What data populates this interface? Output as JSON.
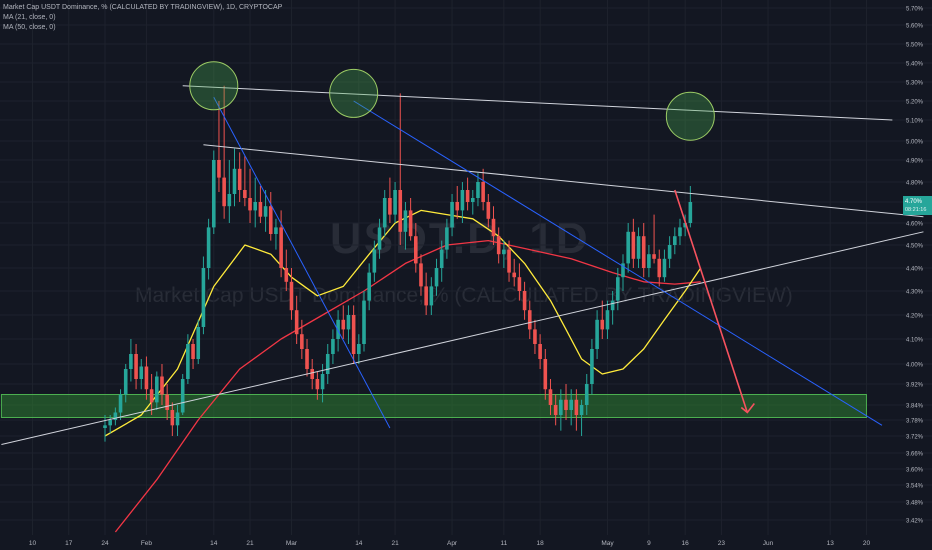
{
  "legend": {
    "symbol_line": "Market Cap USDT Dominance, % (CALCULATED BY TRADINGVIEW), 1D, CRYPTOCAP",
    "ma21_line": "MA (21, close, 0)",
    "ma50_line": "MA (50, close, 0)"
  },
  "watermark": {
    "symbol": "USDT.D, 1D",
    "subtitle": "Market Cap USDT Dominance, % (CALCULATED BY TRADINGVIEW)"
  },
  "price_tag": {
    "value": "4.70%",
    "countdown": "08:21:16"
  },
  "colors": {
    "background": "#131722",
    "up_candle": "#26a69a",
    "down_candle": "#ef5350",
    "ma21": "#ffeb3b",
    "ma50": "#f23645",
    "trendline_blue": "#2962ff",
    "trendline_white": "#d1d4dc",
    "support_zone": "#1b5e20",
    "arrow": "#f7525f"
  },
  "chart_data": {
    "type": "candlestick",
    "y_axis": {
      "unit": "%",
      "ylim": [
        3.38,
        5.72
      ],
      "tick_labels": [
        "5.70%",
        "5.60%",
        "5.50%",
        "5.40%",
        "5.30%",
        "5.20%",
        "5.10%",
        "5.00%",
        "4.90%",
        "4.80%",
        "4.70%",
        "4.60%",
        "4.50%",
        "4.40%",
        "4.30%",
        "4.20%",
        "4.10%",
        "4.00%",
        "3.92%",
        "3.84%",
        "3.78%",
        "3.72%",
        "3.66%",
        "3.60%",
        "3.54%",
        "3.48%",
        "3.42%"
      ],
      "tick_values": [
        5.7,
        5.6,
        5.5,
        5.4,
        5.3,
        5.2,
        5.1,
        5.0,
        4.9,
        4.8,
        4.7,
        4.6,
        4.5,
        4.4,
        4.3,
        4.2,
        4.1,
        4.0,
        3.92,
        3.84,
        3.78,
        3.72,
        3.66,
        3.6,
        3.54,
        3.48,
        3.42
      ]
    },
    "x_axis": {
      "tick_labels": [
        "10",
        "17",
        "24",
        "Feb",
        "14",
        "21",
        "Mar",
        "14",
        "21",
        "Apr",
        "11",
        "18",
        "May",
        "9",
        "16",
        "23",
        "Jun",
        "13",
        "20"
      ],
      "tick_days": [
        -14,
        -7,
        0,
        8,
        21,
        28,
        36,
        49,
        56,
        67,
        77,
        84,
        97,
        105,
        112,
        119,
        128,
        140,
        147
      ]
    },
    "candles": [
      {
        "o": 3.75,
        "h": 3.8,
        "l": 3.7,
        "c": 3.76
      },
      {
        "o": 3.76,
        "h": 3.8,
        "l": 3.73,
        "c": 3.78
      },
      {
        "o": 3.78,
        "h": 3.83,
        "l": 3.76,
        "c": 3.81
      },
      {
        "o": 3.81,
        "h": 3.9,
        "l": 3.78,
        "c": 3.88
      },
      {
        "o": 3.88,
        "h": 4.0,
        "l": 3.85,
        "c": 3.98
      },
      {
        "o": 3.98,
        "h": 4.1,
        "l": 3.93,
        "c": 4.04
      },
      {
        "o": 4.04,
        "h": 4.08,
        "l": 3.9,
        "c": 3.94
      },
      {
        "o": 3.94,
        "h": 4.02,
        "l": 3.9,
        "c": 3.99
      },
      {
        "o": 3.99,
        "h": 4.03,
        "l": 3.86,
        "c": 3.9
      },
      {
        "o": 3.9,
        "h": 3.96,
        "l": 3.8,
        "c": 3.85
      },
      {
        "o": 3.85,
        "h": 3.97,
        "l": 3.82,
        "c": 3.95
      },
      {
        "o": 3.95,
        "h": 4.0,
        "l": 3.84,
        "c": 3.88
      },
      {
        "o": 3.88,
        "h": 3.92,
        "l": 3.78,
        "c": 3.82
      },
      {
        "o": 3.82,
        "h": 3.85,
        "l": 3.72,
        "c": 3.76
      },
      {
        "o": 3.76,
        "h": 3.84,
        "l": 3.72,
        "c": 3.81
      },
      {
        "o": 3.81,
        "h": 3.96,
        "l": 3.8,
        "c": 3.94
      },
      {
        "o": 3.94,
        "h": 4.12,
        "l": 3.92,
        "c": 4.08
      },
      {
        "o": 4.08,
        "h": 4.1,
        "l": 3.98,
        "c": 4.02
      },
      {
        "o": 4.02,
        "h": 4.18,
        "l": 4.0,
        "c": 4.15
      },
      {
        "o": 4.15,
        "h": 4.45,
        "l": 4.12,
        "c": 4.4
      },
      {
        "o": 4.4,
        "h": 4.62,
        "l": 4.35,
        "c": 4.58
      },
      {
        "o": 4.58,
        "h": 4.95,
        "l": 4.55,
        "c": 4.9
      },
      {
        "o": 4.9,
        "h": 5.2,
        "l": 4.75,
        "c": 4.82
      },
      {
        "o": 4.82,
        "h": 5.28,
        "l": 4.62,
        "c": 4.68
      },
      {
        "o": 4.68,
        "h": 4.9,
        "l": 4.6,
        "c": 4.74
      },
      {
        "o": 4.74,
        "h": 4.96,
        "l": 4.68,
        "c": 4.86
      },
      {
        "o": 4.86,
        "h": 4.94,
        "l": 4.7,
        "c": 4.76
      },
      {
        "o": 4.76,
        "h": 4.92,
        "l": 4.68,
        "c": 4.72
      },
      {
        "o": 4.72,
        "h": 4.86,
        "l": 4.6,
        "c": 4.66
      },
      {
        "o": 4.66,
        "h": 4.82,
        "l": 4.58,
        "c": 4.7
      },
      {
        "o": 4.7,
        "h": 4.78,
        "l": 4.6,
        "c": 4.63
      },
      {
        "o": 4.63,
        "h": 4.76,
        "l": 4.56,
        "c": 4.68
      },
      {
        "o": 4.68,
        "h": 4.75,
        "l": 4.52,
        "c": 4.55
      },
      {
        "o": 4.55,
        "h": 4.62,
        "l": 4.48,
        "c": 4.58
      },
      {
        "o": 4.58,
        "h": 4.66,
        "l": 4.36,
        "c": 4.4
      },
      {
        "o": 4.4,
        "h": 4.48,
        "l": 4.3,
        "c": 4.34
      },
      {
        "o": 4.34,
        "h": 4.4,
        "l": 4.18,
        "c": 4.22
      },
      {
        "o": 4.22,
        "h": 4.28,
        "l": 4.08,
        "c": 4.12
      },
      {
        "o": 4.12,
        "h": 4.18,
        "l": 4.02,
        "c": 4.06
      },
      {
        "o": 4.06,
        "h": 4.1,
        "l": 3.95,
        "c": 3.98
      },
      {
        "o": 3.98,
        "h": 4.02,
        "l": 3.9,
        "c": 3.94
      },
      {
        "o": 3.94,
        "h": 3.97,
        "l": 3.86,
        "c": 3.9
      },
      {
        "o": 3.9,
        "h": 4.0,
        "l": 3.85,
        "c": 3.96
      },
      {
        "o": 3.96,
        "h": 4.08,
        "l": 3.92,
        "c": 4.04
      },
      {
        "o": 4.04,
        "h": 4.14,
        "l": 4.0,
        "c": 4.1
      },
      {
        "o": 4.1,
        "h": 4.22,
        "l": 4.05,
        "c": 4.18
      },
      {
        "o": 4.18,
        "h": 4.24,
        "l": 4.1,
        "c": 4.14
      },
      {
        "o": 4.14,
        "h": 4.24,
        "l": 4.08,
        "c": 4.2
      },
      {
        "o": 4.2,
        "h": 4.24,
        "l": 4.0,
        "c": 4.04
      },
      {
        "o": 4.04,
        "h": 4.12,
        "l": 4.0,
        "c": 4.08
      },
      {
        "o": 4.08,
        "h": 4.3,
        "l": 4.05,
        "c": 4.26
      },
      {
        "o": 4.26,
        "h": 4.42,
        "l": 4.22,
        "c": 4.38
      },
      {
        "o": 4.38,
        "h": 4.52,
        "l": 4.34,
        "c": 4.48
      },
      {
        "o": 4.48,
        "h": 4.62,
        "l": 4.44,
        "c": 4.58
      },
      {
        "o": 4.58,
        "h": 4.76,
        "l": 4.54,
        "c": 4.72
      },
      {
        "o": 4.72,
        "h": 4.82,
        "l": 4.6,
        "c": 4.64
      },
      {
        "o": 4.64,
        "h": 4.8,
        "l": 4.6,
        "c": 4.76
      },
      {
        "o": 4.76,
        "h": 5.24,
        "l": 4.5,
        "c": 4.56
      },
      {
        "o": 4.56,
        "h": 4.7,
        "l": 4.48,
        "c": 4.66
      },
      {
        "o": 4.66,
        "h": 4.72,
        "l": 4.52,
        "c": 4.54
      },
      {
        "o": 4.54,
        "h": 4.6,
        "l": 4.38,
        "c": 4.42
      },
      {
        "o": 4.42,
        "h": 4.46,
        "l": 4.28,
        "c": 4.32
      },
      {
        "o": 4.32,
        "h": 4.38,
        "l": 4.2,
        "c": 4.24
      },
      {
        "o": 4.24,
        "h": 4.36,
        "l": 4.2,
        "c": 4.32
      },
      {
        "o": 4.32,
        "h": 4.44,
        "l": 4.28,
        "c": 4.4
      },
      {
        "o": 4.4,
        "h": 4.52,
        "l": 4.34,
        "c": 4.48
      },
      {
        "o": 4.48,
        "h": 4.62,
        "l": 4.44,
        "c": 4.58
      },
      {
        "o": 4.58,
        "h": 4.74,
        "l": 4.54,
        "c": 4.7
      },
      {
        "o": 4.7,
        "h": 4.78,
        "l": 4.62,
        "c": 4.66
      },
      {
        "o": 4.66,
        "h": 4.8,
        "l": 4.6,
        "c": 4.76
      },
      {
        "o": 4.76,
        "h": 4.82,
        "l": 4.66,
        "c": 4.7
      },
      {
        "o": 4.7,
        "h": 4.76,
        "l": 4.64,
        "c": 4.72
      },
      {
        "o": 4.72,
        "h": 4.84,
        "l": 4.68,
        "c": 4.8
      },
      {
        "o": 4.8,
        "h": 4.86,
        "l": 4.66,
        "c": 4.7
      },
      {
        "o": 4.7,
        "h": 4.74,
        "l": 4.58,
        "c": 4.62
      },
      {
        "o": 4.62,
        "h": 4.68,
        "l": 4.5,
        "c": 4.54
      },
      {
        "o": 4.54,
        "h": 4.58,
        "l": 4.42,
        "c": 4.46
      },
      {
        "o": 4.46,
        "h": 4.52,
        "l": 4.4,
        "c": 4.48
      },
      {
        "o": 4.48,
        "h": 4.52,
        "l": 4.34,
        "c": 4.38
      },
      {
        "o": 4.38,
        "h": 4.44,
        "l": 4.32,
        "c": 4.36
      },
      {
        "o": 4.36,
        "h": 4.42,
        "l": 4.26,
        "c": 4.3
      },
      {
        "o": 4.3,
        "h": 4.34,
        "l": 4.18,
        "c": 4.22
      },
      {
        "o": 4.22,
        "h": 4.26,
        "l": 4.1,
        "c": 4.14
      },
      {
        "o": 4.14,
        "h": 4.18,
        "l": 4.04,
        "c": 4.08
      },
      {
        "o": 4.08,
        "h": 4.12,
        "l": 3.98,
        "c": 4.02
      },
      {
        "o": 4.02,
        "h": 4.06,
        "l": 3.86,
        "c": 3.9
      },
      {
        "o": 3.9,
        "h": 3.94,
        "l": 3.8,
        "c": 3.84
      },
      {
        "o": 3.84,
        "h": 3.88,
        "l": 3.76,
        "c": 3.8
      },
      {
        "o": 3.8,
        "h": 3.9,
        "l": 3.74,
        "c": 3.86
      },
      {
        "o": 3.86,
        "h": 3.92,
        "l": 3.78,
        "c": 3.82
      },
      {
        "o": 3.82,
        "h": 3.9,
        "l": 3.76,
        "c": 3.86
      },
      {
        "o": 3.86,
        "h": 3.9,
        "l": 3.74,
        "c": 3.8
      },
      {
        "o": 3.8,
        "h": 3.86,
        "l": 3.72,
        "c": 3.84
      },
      {
        "o": 3.84,
        "h": 3.96,
        "l": 3.8,
        "c": 3.92
      },
      {
        "o": 3.92,
        "h": 4.1,
        "l": 3.88,
        "c": 4.06
      },
      {
        "o": 4.06,
        "h": 4.22,
        "l": 4.02,
        "c": 4.18
      },
      {
        "o": 4.18,
        "h": 4.26,
        "l": 4.1,
        "c": 4.14
      },
      {
        "o": 4.14,
        "h": 4.26,
        "l": 4.1,
        "c": 4.22
      },
      {
        "o": 4.22,
        "h": 4.3,
        "l": 4.16,
        "c": 4.26
      },
      {
        "o": 4.26,
        "h": 4.4,
        "l": 4.22,
        "c": 4.36
      },
      {
        "o": 4.36,
        "h": 4.46,
        "l": 4.3,
        "c": 4.42
      },
      {
        "o": 4.42,
        "h": 4.6,
        "l": 4.38,
        "c": 4.56
      },
      {
        "o": 4.56,
        "h": 4.62,
        "l": 4.4,
        "c": 4.44
      },
      {
        "o": 4.44,
        "h": 4.58,
        "l": 4.4,
        "c": 4.54
      },
      {
        "o": 4.54,
        "h": 4.6,
        "l": 4.36,
        "c": 4.4
      },
      {
        "o": 4.4,
        "h": 4.5,
        "l": 4.36,
        "c": 4.46
      },
      {
        "o": 4.46,
        "h": 4.64,
        "l": 4.42,
        "c": 4.44
      },
      {
        "o": 4.44,
        "h": 4.48,
        "l": 4.32,
        "c": 4.36
      },
      {
        "o": 4.36,
        "h": 4.48,
        "l": 4.34,
        "c": 4.44
      },
      {
        "o": 4.44,
        "h": 4.54,
        "l": 4.4,
        "c": 4.5
      },
      {
        "o": 4.5,
        "h": 4.58,
        "l": 4.46,
        "c": 4.54
      },
      {
        "o": 4.54,
        "h": 4.62,
        "l": 4.5,
        "c": 4.58
      },
      {
        "o": 4.58,
        "h": 4.64,
        "l": 4.54,
        "c": 4.6
      },
      {
        "o": 4.6,
        "h": 4.78,
        "l": 4.58,
        "c": 4.7
      }
    ],
    "ma21": [
      [
        0,
        3.72
      ],
      [
        7,
        3.8
      ],
      [
        14,
        3.98
      ],
      [
        21,
        4.32
      ],
      [
        27,
        4.5
      ],
      [
        32,
        4.46
      ],
      [
        36,
        4.36
      ],
      [
        41,
        4.28
      ],
      [
        46,
        4.32
      ],
      [
        51,
        4.46
      ],
      [
        56,
        4.6
      ],
      [
        61,
        4.66
      ],
      [
        66,
        4.64
      ],
      [
        71,
        4.62
      ],
      [
        76,
        4.54
      ],
      [
        81,
        4.42
      ],
      [
        86,
        4.26
      ],
      [
        89,
        4.14
      ],
      [
        92,
        4.02
      ],
      [
        96,
        3.96
      ],
      [
        100,
        3.98
      ],
      [
        104,
        4.06
      ],
      [
        108,
        4.18
      ],
      [
        112,
        4.3
      ],
      [
        115,
        4.4
      ]
    ],
    "ma50": [
      [
        2,
        3.38
      ],
      [
        10,
        3.56
      ],
      [
        18,
        3.78
      ],
      [
        26,
        3.98
      ],
      [
        34,
        4.1
      ],
      [
        42,
        4.2
      ],
      [
        50,
        4.3
      ],
      [
        58,
        4.42
      ],
      [
        66,
        4.5
      ],
      [
        74,
        4.52
      ],
      [
        82,
        4.48
      ],
      [
        90,
        4.44
      ],
      [
        98,
        4.38
      ],
      [
        104,
        4.34
      ],
      [
        110,
        4.33
      ],
      [
        115,
        4.34
      ]
    ],
    "overlays": {
      "upper_resistance": [
        [
          15,
          5.28
        ],
        [
          152,
          5.1
        ]
      ],
      "mid_resistance": [
        [
          19,
          4.98
        ],
        [
          158,
          4.63
        ]
      ],
      "rising_support": [
        [
          -20,
          3.69
        ],
        [
          158,
          4.56
        ]
      ],
      "blue_diag_left": [
        [
          21,
          5.22
        ],
        [
          55,
          3.75
        ]
      ],
      "blue_diag_right": [
        [
          48,
          5.2
        ],
        [
          150,
          3.76
        ]
      ],
      "circles": [
        [
          21,
          5.28
        ],
        [
          48,
          5.24
        ],
        [
          113,
          5.12
        ]
      ],
      "support_zone": [
        3.79,
        3.88
      ],
      "forecast_arrow": [
        [
          110,
          4.76
        ],
        [
          124,
          3.81
        ]
      ]
    }
  }
}
